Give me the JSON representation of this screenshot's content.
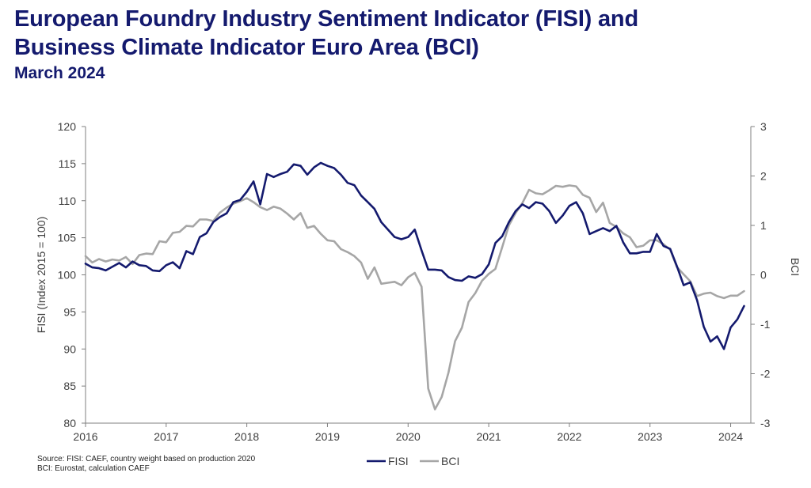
{
  "header": {
    "title": "European Foundry Industry Sentiment Indicator (FISI) and\nBusiness Climate Indicator Euro Area (BCI)",
    "subtitle": "March 2024"
  },
  "source": {
    "line1": "Source: FISI: CAEF, country weight based on production 2020",
    "line2": "BCI: Eurostat, calculation CAEF"
  },
  "colors": {
    "fisi": "#141a6e",
    "bci": "#a6a6a6",
    "axis": "#7f7f7f"
  },
  "chart_data": {
    "type": "line",
    "title": "European Foundry Industry Sentiment Indicator (FISI) and Business Climate Indicator Euro Area (BCI)",
    "subtitle": "March 2024",
    "ylabel": "FISI (Index 2015 = 100)",
    "y2label": "BCI",
    "ylim": [
      80,
      120
    ],
    "y2lim": [
      -3,
      3
    ],
    "yticks": [
      80,
      85,
      90,
      95,
      100,
      105,
      110,
      115,
      120
    ],
    "y2ticks": [
      -3,
      -2,
      -1,
      0,
      1,
      2,
      3
    ],
    "xlim": [
      2016,
      2024.25
    ],
    "xticks": [
      2016,
      2017,
      2018,
      2019,
      2020,
      2021,
      2022,
      2023,
      2024
    ],
    "grid": false,
    "legend": "bottom-center",
    "series": [
      {
        "name": "FISI",
        "axis": "left",
        "x": [
          2016.0,
          2016.083,
          2016.167,
          2016.25,
          2016.333,
          2016.417,
          2016.5,
          2016.583,
          2016.667,
          2016.75,
          2016.833,
          2016.917,
          2017.0,
          2017.083,
          2017.167,
          2017.25,
          2017.333,
          2017.417,
          2017.5,
          2017.583,
          2017.667,
          2017.75,
          2017.833,
          2017.917,
          2018.0,
          2018.083,
          2018.167,
          2018.25,
          2018.333,
          2018.417,
          2018.5,
          2018.583,
          2018.667,
          2018.75,
          2018.833,
          2018.917,
          2019.0,
          2019.083,
          2019.167,
          2019.25,
          2019.333,
          2019.417,
          2019.5,
          2019.583,
          2019.667,
          2019.75,
          2019.833,
          2019.917,
          2020.0,
          2020.083,
          2020.167,
          2020.25,
          2020.333,
          2020.417,
          2020.5,
          2020.583,
          2020.667,
          2020.75,
          2020.833,
          2020.917,
          2021.0,
          2021.083,
          2021.167,
          2021.25,
          2021.333,
          2021.417,
          2021.5,
          2021.583,
          2021.667,
          2021.75,
          2021.833,
          2021.917,
          2022.0,
          2022.083,
          2022.167,
          2022.25,
          2022.333,
          2022.417,
          2022.5,
          2022.583,
          2022.667,
          2022.75,
          2022.833,
          2022.917,
          2023.0,
          2023.083,
          2023.167,
          2023.25,
          2023.333,
          2023.417,
          2023.5,
          2023.583,
          2023.667,
          2023.75,
          2023.833,
          2023.917,
          2024.0,
          2024.083,
          2024.167
        ],
        "values": [
          101.5,
          101.0,
          100.9,
          100.6,
          101.1,
          101.6,
          101.0,
          101.8,
          101.3,
          101.2,
          100.6,
          100.5,
          101.3,
          101.7,
          100.9,
          103.2,
          102.8,
          105.1,
          105.6,
          107.1,
          107.8,
          108.3,
          109.8,
          110.1,
          111.2,
          112.6,
          109.5,
          113.6,
          113.2,
          113.6,
          113.9,
          114.9,
          114.7,
          113.5,
          114.5,
          115.1,
          114.7,
          114.4,
          113.5,
          112.4,
          112.1,
          110.7,
          109.8,
          108.9,
          107.1,
          106.1,
          105.1,
          104.8,
          105.1,
          106.1,
          103.3,
          100.7,
          100.7,
          100.6,
          99.7,
          99.3,
          99.2,
          99.8,
          99.6,
          100.1,
          101.4,
          104.3,
          105.2,
          107.1,
          108.6,
          109.5,
          109.0,
          109.8,
          109.6,
          108.6,
          107.0,
          108.0,
          109.3,
          109.8,
          108.3,
          105.5,
          105.9,
          106.3,
          105.9,
          106.6,
          104.4,
          102.9,
          102.9,
          103.1,
          103.1,
          105.5,
          103.9,
          103.5,
          101.2,
          98.6,
          99.0,
          96.6,
          93.0,
          91.0,
          91.7,
          90.0,
          92.9,
          94.0,
          95.8
        ]
      },
      {
        "name": "BCI",
        "axis": "right",
        "x": [
          2016.0,
          2016.083,
          2016.167,
          2016.25,
          2016.333,
          2016.417,
          2016.5,
          2016.583,
          2016.667,
          2016.75,
          2016.833,
          2016.917,
          2017.0,
          2017.083,
          2017.167,
          2017.25,
          2017.333,
          2017.417,
          2017.5,
          2017.583,
          2017.667,
          2017.75,
          2017.833,
          2017.917,
          2018.0,
          2018.083,
          2018.167,
          2018.25,
          2018.333,
          2018.417,
          2018.5,
          2018.583,
          2018.667,
          2018.75,
          2018.833,
          2018.917,
          2019.0,
          2019.083,
          2019.167,
          2019.25,
          2019.333,
          2019.417,
          2019.5,
          2019.583,
          2019.667,
          2019.75,
          2019.833,
          2019.917,
          2020.0,
          2020.083,
          2020.167,
          2020.25,
          2020.333,
          2020.417,
          2020.5,
          2020.583,
          2020.667,
          2020.75,
          2020.833,
          2020.917,
          2021.0,
          2021.083,
          2021.167,
          2021.25,
          2021.333,
          2021.417,
          2021.5,
          2021.583,
          2021.667,
          2021.75,
          2021.833,
          2021.917,
          2022.0,
          2022.083,
          2022.167,
          2022.25,
          2022.333,
          2022.417,
          2022.5,
          2022.583,
          2022.667,
          2022.75,
          2022.833,
          2022.917,
          2023.0,
          2023.083,
          2023.167,
          2023.25,
          2023.333,
          2023.417,
          2023.5,
          2023.583,
          2023.667,
          2023.75,
          2023.833,
          2023.917,
          2024.0,
          2024.083,
          2024.167
        ],
        "values": [
          0.38,
          0.25,
          0.32,
          0.27,
          0.31,
          0.29,
          0.36,
          0.22,
          0.4,
          0.43,
          0.42,
          0.68,
          0.66,
          0.85,
          0.87,
          0.99,
          0.98,
          1.12,
          1.12,
          1.09,
          1.26,
          1.36,
          1.44,
          1.49,
          1.55,
          1.47,
          1.37,
          1.31,
          1.38,
          1.34,
          1.24,
          1.12,
          1.25,
          0.95,
          0.99,
          0.83,
          0.7,
          0.68,
          0.52,
          0.46,
          0.38,
          0.25,
          -0.08,
          0.15,
          -0.18,
          -0.16,
          -0.14,
          -0.21,
          -0.05,
          0.04,
          -0.24,
          -2.3,
          -2.72,
          -2.47,
          -1.98,
          -1.34,
          -1.07,
          -0.55,
          -0.37,
          -0.12,
          0.02,
          0.12,
          0.56,
          1.0,
          1.25,
          1.45,
          1.72,
          1.65,
          1.63,
          1.71,
          1.8,
          1.78,
          1.81,
          1.79,
          1.62,
          1.56,
          1.27,
          1.46,
          1.05,
          0.97,
          0.84,
          0.76,
          0.56,
          0.59,
          0.7,
          0.7,
          0.62,
          0.51,
          0.16,
          0.01,
          -0.13,
          -0.43,
          -0.38,
          -0.36,
          -0.43,
          -0.47,
          -0.42,
          -0.42,
          -0.33
        ]
      }
    ]
  }
}
